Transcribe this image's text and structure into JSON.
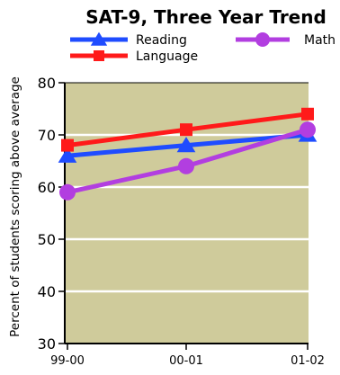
{
  "chart_data": {
    "type": "line",
    "title": "SAT-9, Three Year Trend",
    "xlabel": "",
    "ylabel": "Percent of students scoring above average",
    "categories": [
      "99-00",
      "00-01",
      "01-02"
    ],
    "ylim": [
      30,
      80
    ],
    "yticks": [
      30,
      40,
      50,
      60,
      70,
      80
    ],
    "grid": true,
    "legend_position": "top",
    "plot_background": "#cfcb9b",
    "series": [
      {
        "name": "Reading",
        "values": [
          66,
          68,
          70
        ],
        "color": "#1f4cff",
        "marker": "triangle"
      },
      {
        "name": "Language",
        "values": [
          68,
          71,
          74
        ],
        "color": "#ff1a1a",
        "marker": "square"
      },
      {
        "name": "Math",
        "values": [
          59,
          64,
          71
        ],
        "color": "#b23ee0",
        "marker": "circle"
      }
    ]
  }
}
